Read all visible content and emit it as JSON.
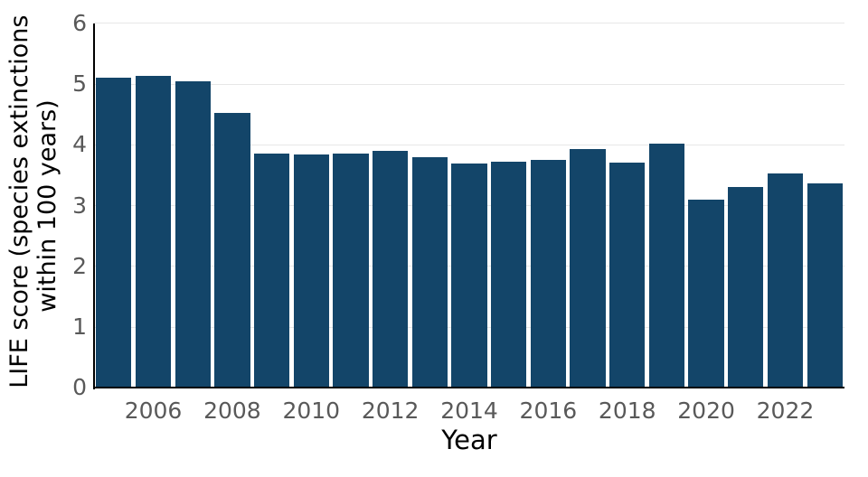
{
  "chart_data": {
    "type": "bar",
    "title": "",
    "xlabel": "Year",
    "ylabel": "LIFE score (species extinctions within 100 years)",
    "ylabel_lines": [
      "LIFE score (species extinctions",
      "within 100 years)"
    ],
    "categories": [
      2005,
      2006,
      2007,
      2008,
      2009,
      2010,
      2011,
      2012,
      2013,
      2014,
      2015,
      2016,
      2017,
      2018,
      2019,
      2020,
      2021,
      2022,
      2023
    ],
    "values": [
      5.1,
      5.13,
      5.05,
      4.52,
      3.86,
      3.84,
      3.85,
      3.9,
      3.8,
      3.7,
      3.72,
      3.76,
      3.93,
      3.71,
      4.02,
      3.1,
      3.3,
      3.53,
      3.36
    ],
    "ylim": [
      0,
      6
    ],
    "yticks": [
      0,
      1,
      2,
      3,
      4,
      5,
      6
    ],
    "xtick_years": [
      2006,
      2008,
      2010,
      2012,
      2014,
      2016,
      2018,
      2020,
      2022
    ],
    "grid": "horizontal",
    "legend": "none",
    "colors": {
      "bar": "#134569",
      "gridline": "#e7e7e7",
      "spine": "#000000",
      "tick_label": "#595959",
      "axis_title": "#000000",
      "background": "#ffffff"
    }
  }
}
